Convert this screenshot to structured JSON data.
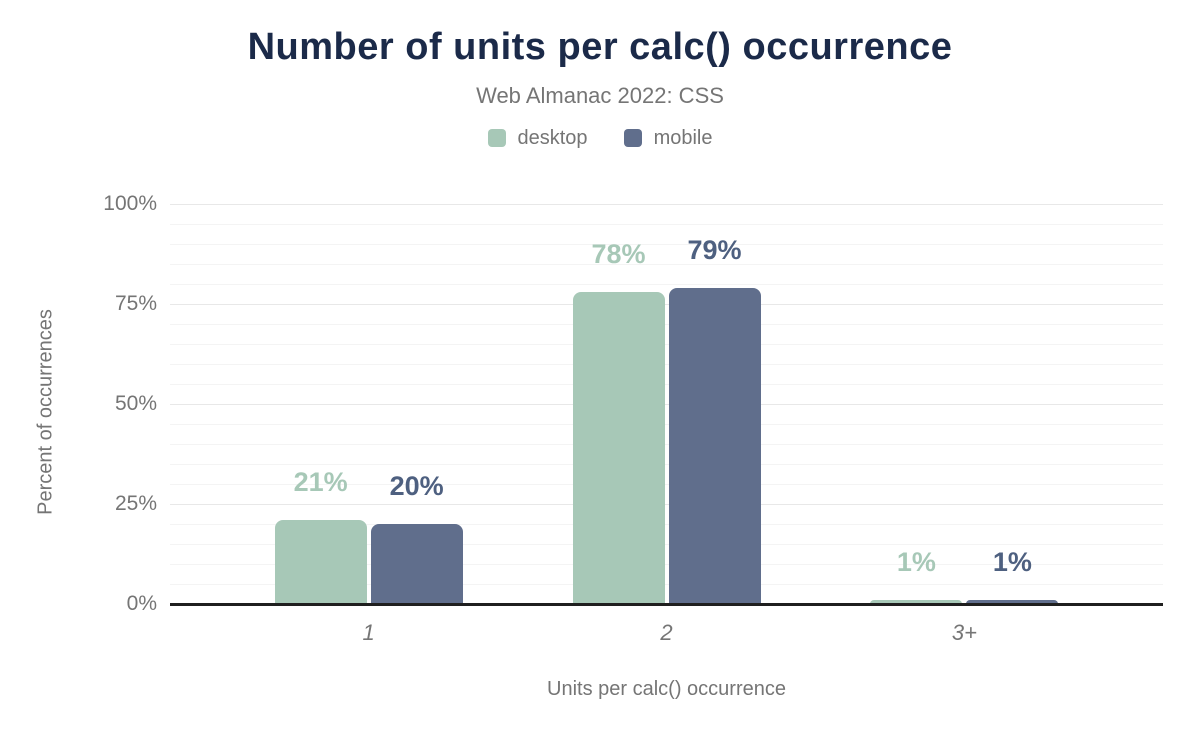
{
  "header": {
    "title": "Number of units per calc() occurrence",
    "subtitle": "Web Almanac 2022: CSS"
  },
  "chart_data": {
    "type": "bar",
    "title": "Number of units per calc() occurrence",
    "subtitle": "Web Almanac 2022: CSS",
    "categories": [
      "1",
      "2",
      "3+"
    ],
    "series": [
      {
        "name": "desktop",
        "color": "#a7c8b7",
        "label_color": "#a7c8b7",
        "values": [
          21,
          78,
          1
        ]
      },
      {
        "name": "mobile",
        "color": "#606e8c",
        "label_color": "#4e6080",
        "values": [
          20,
          79,
          1
        ]
      }
    ],
    "value_suffix": "%",
    "xlabel": "Units per calc() occurrence",
    "ylabel": "Percent of occurrences",
    "ylim": [
      0,
      100
    ],
    "yticks": [
      {
        "value": 0,
        "label": "0%"
      },
      {
        "value": 25,
        "label": "25%"
      },
      {
        "value": 50,
        "label": "50%"
      },
      {
        "value": 75,
        "label": "75%"
      },
      {
        "value": 100,
        "label": "100%"
      }
    ],
    "minor_grid_step": 5,
    "major_grid_step": 25,
    "grid": true,
    "legend_position": "top"
  },
  "colors": {
    "title": "#1b2a49",
    "text_muted": "#757575",
    "axis_line": "#1f1f1f",
    "grid_minor": "#f4f4f4",
    "grid_major": "#e8e8e8",
    "background": "#ffffff"
  }
}
